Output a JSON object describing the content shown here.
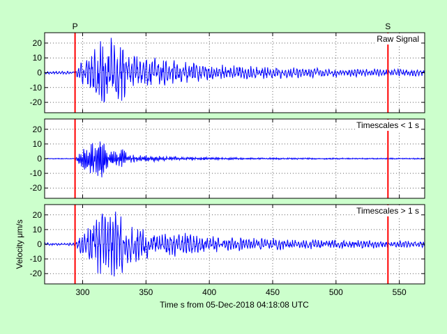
{
  "chart_data": {
    "type": "line",
    "title": "",
    "xlabel": "Time s from 05-Dec-2018 04:18:08 UTC",
    "ylabel": "Velocity μm/s",
    "xlim": [
      270,
      570
    ],
    "ylim": [
      -27,
      27
    ],
    "x_ticks": [
      "300",
      "350",
      "400",
      "450",
      "500",
      "550"
    ],
    "y_ticks": [
      "20",
      "10",
      "0",
      "-10",
      "-20"
    ],
    "grid": true,
    "phase_markers": [
      {
        "label": "P",
        "time": 294,
        "color": "#ff0000"
      },
      {
        "label": "S",
        "time": 541,
        "color": "#ff0000"
      }
    ],
    "line_color": "#0000ff",
    "panels": [
      {
        "name": "Raw Signal",
        "label": "Raw Signal",
        "envelope": {
          "t": [
            270,
            294,
            296,
            300,
            305,
            310,
            315,
            320,
            325,
            330,
            335,
            340,
            345,
            350,
            360,
            370,
            380,
            390,
            400,
            420,
            440,
            460,
            480,
            500,
            520,
            540,
            560,
            570
          ],
          "amp": [
            1,
            1,
            4,
            10,
            14,
            18,
            25,
            24,
            25,
            22,
            16,
            13,
            12,
            11,
            10,
            9,
            8,
            6.5,
            6,
            5,
            4.5,
            4,
            3.5,
            3,
            3,
            2.8,
            2.5,
            2.5
          ]
        }
      },
      {
        "name": "Timescales < 1 s",
        "label": "Timescales < 1 s",
        "envelope": {
          "t": [
            270,
            294,
            296,
            300,
            305,
            310,
            315,
            320,
            325,
            330,
            335,
            340,
            350,
            360,
            370,
            380,
            400,
            420,
            450,
            500,
            550,
            570
          ],
          "amp": [
            0.3,
            0.3,
            3,
            7,
            9,
            18,
            14,
            7,
            6,
            8,
            4,
            3,
            2.5,
            2,
            1.6,
            1.3,
            1,
            0.8,
            0.6,
            0.5,
            0.4,
            0.4
          ]
        }
      },
      {
        "name": "Timescales > 1 s",
        "label": "Timescales > 1 s",
        "envelope": {
          "t": [
            270,
            294,
            296,
            300,
            305,
            310,
            315,
            320,
            325,
            330,
            335,
            340,
            345,
            350,
            360,
            370,
            380,
            390,
            400,
            420,
            440,
            460,
            480,
            500,
            520,
            540,
            560,
            570
          ],
          "amp": [
            1,
            1,
            4,
            10,
            14,
            18,
            24,
            24,
            25,
            22,
            16,
            13,
            12,
            11,
            10,
            9,
            8,
            6.5,
            6,
            5,
            4.5,
            4,
            3.5,
            3,
            3,
            2.8,
            2.5,
            2.5
          ]
        }
      }
    ]
  }
}
